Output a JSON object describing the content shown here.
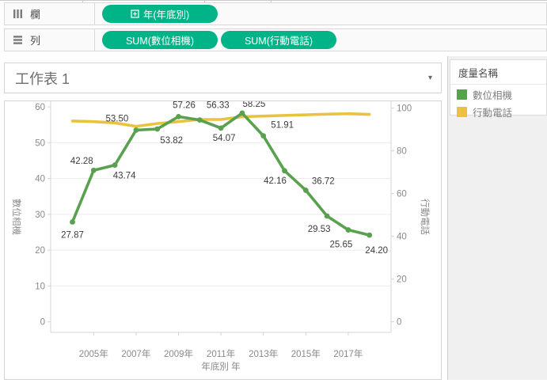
{
  "colors": {
    "pill": "#00b487",
    "camera_green": "#59a14f",
    "phone_yellow": "#e9c33f",
    "axis_text": "#8a8a8a",
    "data_label": "#3c3c3c",
    "axis_line": "#d4d4d4",
    "gridline": "#ececec"
  },
  "shelves": {
    "columns": {
      "label": "欄",
      "pills": [
        {
          "label": "年(年底別)",
          "icon": "expand-plus-icon"
        }
      ]
    },
    "rows": {
      "label": "列",
      "pills": [
        {
          "label": "SUM(數位相機)"
        },
        {
          "label": "SUM(行動電話)"
        }
      ]
    }
  },
  "sheet": {
    "title": "工作表 1"
  },
  "legend": {
    "title": "度量名稱",
    "items": [
      {
        "label": "數位相機",
        "color": "#59a14f"
      },
      {
        "label": "行動電話",
        "color": "#e9c33f"
      }
    ]
  },
  "chart_data": {
    "type": "line",
    "x": [
      2004,
      2005,
      2006,
      2007,
      2008,
      2009,
      2010,
      2011,
      2012,
      2013,
      2014,
      2015,
      2016,
      2017,
      2018
    ],
    "x_ticks": [
      2005,
      2007,
      2009,
      2011,
      2013,
      2015,
      2017
    ],
    "x_tick_labels": [
      "2005年",
      "2007年",
      "2009年",
      "2011年",
      "2013年",
      "2015年",
      "2017年"
    ],
    "xlabel": "年底別 年",
    "left_axis": {
      "title": "數位相機",
      "min": 0,
      "max": 60,
      "ticks": [
        0,
        10,
        20,
        30,
        40,
        50,
        60
      ]
    },
    "right_axis": {
      "title": "行動電話",
      "min": 0,
      "max": 100,
      "ticks": [
        0,
        20,
        40,
        60,
        80,
        100
      ]
    },
    "grid": "horizontal-left-ticks",
    "legend_position": "right-panel",
    "series": [
      {
        "name": "行動電話",
        "axis": "right",
        "color": "#e9c33f",
        "markers": false,
        "values": [
          94.0,
          93.7,
          93.1,
          91.5,
          92.8,
          93.7,
          94.7,
          94.7,
          96.0,
          96.3,
          96.6,
          96.9,
          97.2,
          97.4,
          97.1
        ]
      },
      {
        "name": "數位相機",
        "axis": "left",
        "color": "#59a14f",
        "markers": true,
        "values": [
          27.87,
          42.28,
          43.74,
          53.5,
          53.82,
          57.26,
          56.33,
          54.07,
          58.25,
          51.91,
          42.16,
          36.72,
          29.53,
          25.65,
          24.2
        ],
        "labels": [
          "27.87",
          "42.28",
          "43.74",
          "53.50",
          "53.82",
          "57.26",
          "56.33",
          "54.07",
          "58.25",
          "51.91",
          "42.16",
          "36.72",
          "29.53",
          "25.65",
          "24.20"
        ],
        "label_offsets": [
          [
            0,
            20
          ],
          [
            -15,
            -8
          ],
          [
            12,
            17
          ],
          [
            -24,
            -11
          ],
          [
            18,
            18
          ],
          [
            7,
            -11
          ],
          [
            23,
            -15
          ],
          [
            4,
            16
          ],
          [
            15,
            -8
          ],
          [
            24,
            -10
          ],
          [
            -12,
            16
          ],
          [
            22,
            -8
          ],
          [
            -10,
            20
          ],
          [
            -9,
            22
          ],
          [
            9,
            23
          ]
        ]
      }
    ]
  }
}
